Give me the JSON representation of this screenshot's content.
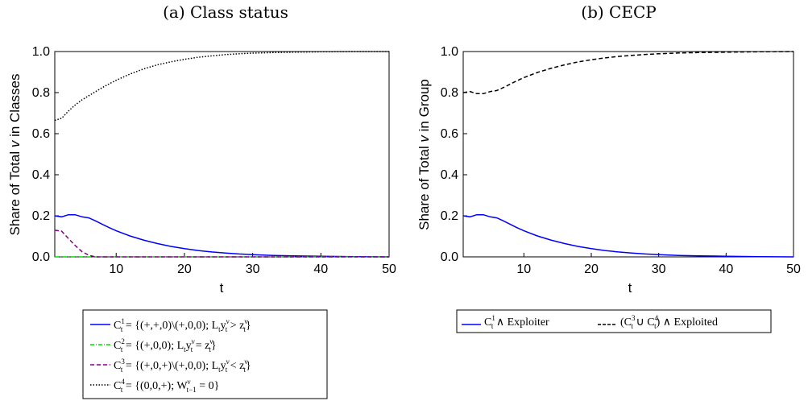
{
  "chart_data": [
    {
      "type": "line",
      "title": "(a) Class status",
      "xlabel": "t",
      "ylabel": "Share of Total v in Classes",
      "xlim": [
        1,
        50
      ],
      "ylim": [
        0,
        1
      ],
      "xticks": [
        10,
        20,
        30,
        40,
        50
      ],
      "yticks": [
        0.0,
        0.2,
        0.4,
        0.6,
        0.8,
        1.0
      ],
      "grid": false,
      "legend_position": "below",
      "series": [
        {
          "name": "C_t^1 = {(+,+,0)\\(+,0,0); L_t y_t^v > z_t^v}",
          "color": "#0000ff",
          "dash": "solid",
          "x": [
            1,
            2,
            3,
            4,
            5,
            6,
            7,
            8,
            9,
            10,
            12,
            14,
            16,
            18,
            20,
            22,
            24,
            26,
            28,
            30,
            33,
            36,
            40,
            45,
            50
          ],
          "y": [
            0.2,
            0.195,
            0.205,
            0.205,
            0.195,
            0.19,
            0.175,
            0.158,
            0.142,
            0.127,
            0.102,
            0.082,
            0.065,
            0.051,
            0.04,
            0.031,
            0.024,
            0.019,
            0.014,
            0.011,
            0.007,
            0.005,
            0.003,
            0.001,
            0.0
          ]
        },
        {
          "name": "C_t^2 = {(+,0,0); L_t y_t^v = z_t^v}",
          "color": "#00dd00",
          "dash": "dashdot",
          "x": [
            1,
            10,
            20,
            30,
            40,
            50
          ],
          "y": [
            0.0,
            0.0,
            0.0,
            0.0,
            0.0,
            0.0
          ]
        },
        {
          "name": "C_t^3 = {(+,0,+)\\(+,0,0); L_t y_t^v < z_t^v}",
          "color": "#800080",
          "dash": "dashed",
          "x": [
            1,
            2,
            3,
            4,
            5,
            6,
            7,
            10,
            20,
            30,
            40,
            50
          ],
          "y": [
            0.13,
            0.125,
            0.09,
            0.055,
            0.025,
            0.008,
            0.0,
            0.0,
            0.0,
            0.0,
            0.0,
            0.0
          ]
        },
        {
          "name": "C_t^4 = {(0,0,+); W_{t-1}^v = 0}",
          "color": "#000000",
          "dash": "dotted",
          "x": [
            1,
            2,
            3,
            4,
            5,
            6,
            7,
            8,
            9,
            10,
            12,
            14,
            16,
            18,
            20,
            22,
            24,
            26,
            28,
            30,
            33,
            36,
            40,
            45,
            50
          ],
          "y": [
            0.665,
            0.675,
            0.71,
            0.74,
            0.765,
            0.785,
            0.805,
            0.825,
            0.843,
            0.86,
            0.89,
            0.915,
            0.935,
            0.95,
            0.962,
            0.972,
            0.979,
            0.985,
            0.989,
            0.992,
            0.995,
            0.997,
            0.999,
            1.0,
            1.0
          ]
        }
      ]
    },
    {
      "type": "line",
      "title": "(b)  CECP",
      "xlabel": "t",
      "ylabel": "Share of Total v in Group",
      "xlim": [
        1,
        50
      ],
      "ylim": [
        0,
        1
      ],
      "xticks": [
        10,
        20,
        30,
        40,
        50
      ],
      "yticks": [
        0.0,
        0.2,
        0.4,
        0.6,
        0.8,
        1.0
      ],
      "grid": false,
      "legend_position": "below",
      "series": [
        {
          "name": "C_t^1 ∧ Exploiter",
          "color": "#0000ff",
          "dash": "solid",
          "x": [
            1,
            2,
            3,
            4,
            5,
            6,
            7,
            8,
            9,
            10,
            12,
            14,
            16,
            18,
            20,
            22,
            24,
            26,
            28,
            30,
            33,
            36,
            40,
            45,
            50
          ],
          "y": [
            0.2,
            0.195,
            0.205,
            0.205,
            0.195,
            0.19,
            0.175,
            0.158,
            0.142,
            0.127,
            0.102,
            0.082,
            0.065,
            0.051,
            0.04,
            0.031,
            0.024,
            0.019,
            0.014,
            0.011,
            0.007,
            0.005,
            0.003,
            0.001,
            0.0
          ]
        },
        {
          "name": "(C_t^3 ∪ C_t^4) ∧ Exploited",
          "color": "#000000",
          "dash": "dashed",
          "x": [
            1,
            2,
            3,
            4,
            5,
            6,
            7,
            8,
            9,
            10,
            12,
            14,
            16,
            18,
            20,
            22,
            24,
            26,
            28,
            30,
            33,
            36,
            40,
            45,
            50
          ],
          "y": [
            0.8,
            0.805,
            0.795,
            0.795,
            0.805,
            0.81,
            0.825,
            0.842,
            0.858,
            0.873,
            0.898,
            0.918,
            0.935,
            0.949,
            0.96,
            0.969,
            0.976,
            0.981,
            0.986,
            0.989,
            0.993,
            0.995,
            0.997,
            0.999,
            1.0
          ]
        }
      ]
    }
  ],
  "legends": [
    {
      "entries": [
        {
          "main": "C",
          "sup": "1",
          "sub": "t",
          "text": " = {(+,+,0)\\(+,0,0); L",
          "text2": "y",
          "text3": " > z",
          "end": "}"
        },
        {
          "main": "C",
          "sup": "2",
          "sub": "t",
          "text": " = {(+,0,0); L",
          "text2": "y",
          "text3": " = z",
          "end": "}"
        },
        {
          "main": "C",
          "sup": "3",
          "sub": "t",
          "text": " = {(+,0,+)\\(+,0,0); L",
          "text2": "y",
          "text3": " < z",
          "end": "}"
        },
        {
          "main": "C",
          "sup": "4",
          "sub": "t",
          "text": " = {(0,0,+); W",
          "text2": "",
          "text3": " = 0",
          "end": "}"
        }
      ]
    },
    {
      "entries": [
        {
          "main": "C",
          "sup": "1",
          "sub": "t",
          "text": " ∧ Exploiter"
        },
        {
          "main": "(C",
          "sup": "3",
          "sub": "t",
          "text": " ∪ C",
          "sup2": "4",
          "sub2": "t",
          "text2": ") ∧ Exploited"
        }
      ]
    }
  ],
  "axis_symbols": {
    "v": "v",
    "t_minus_1": "t−1",
    "sub_t": "t",
    "sup_v": "ν"
  }
}
